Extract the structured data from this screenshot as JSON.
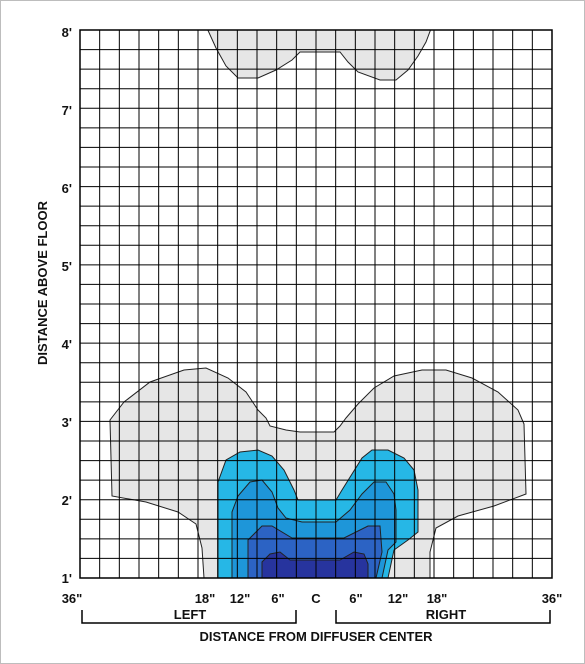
{
  "diagram": {
    "y_axis": {
      "title": "DISTANCE ABOVE FLOOR",
      "ticks": [
        "1'",
        "2'",
        "3'",
        "4'",
        "5'",
        "6'",
        "7'",
        "8'"
      ]
    },
    "x_axis": {
      "title": "DISTANCE FROM DIFFUSER CENTER",
      "ticks": [
        "36\"",
        "18\"",
        "12\"",
        "6\"",
        "C",
        "6\"",
        "12\"",
        "18\"",
        "36\""
      ],
      "left_label": "LEFT",
      "right_label": "RIGHT"
    },
    "colors": {
      "outer_zone": "#e6e6e6",
      "zone_1": "#26b7e6",
      "zone_2": "#1e96d9",
      "zone_3": "#2c63c4",
      "zone_4": "#27349e",
      "grid": "#000000"
    }
  }
}
